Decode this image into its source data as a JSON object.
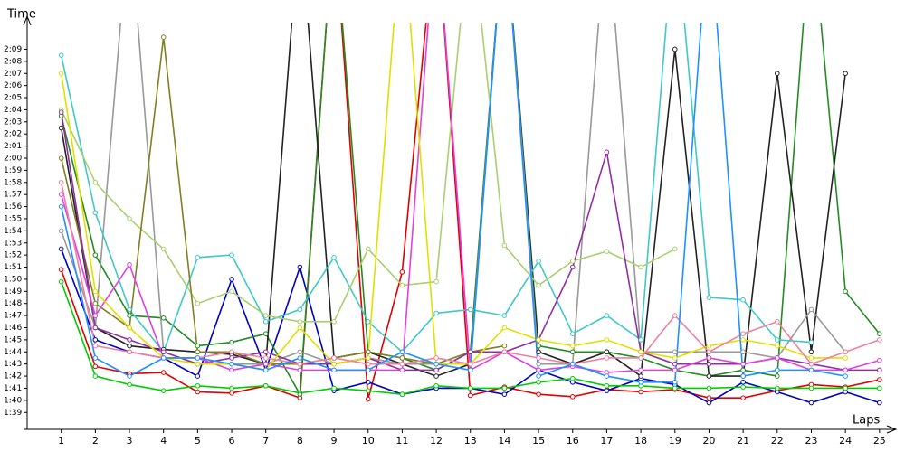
{
  "chart_data": {
    "type": "line",
    "y_label": "Time",
    "x_label": "Laps",
    "xlim": [
      0,
      25.35
    ],
    "ylim": [
      97.6,
      131.2
    ],
    "xticks": [
      1,
      2,
      3,
      4,
      5,
      6,
      7,
      8,
      9,
      10,
      11,
      12,
      13,
      14,
      15,
      16,
      17,
      18,
      19,
      20,
      21,
      22,
      23,
      24,
      25
    ],
    "yticks": [
      {
        "value": 99,
        "label": "1:39"
      },
      {
        "value": 100,
        "label": "1:40"
      },
      {
        "value": 101,
        "label": "1:41"
      },
      {
        "value": 102,
        "label": "1:42"
      },
      {
        "value": 103,
        "label": "1:43"
      },
      {
        "value": 104,
        "label": "1:44"
      },
      {
        "value": 105,
        "label": "1:45"
      },
      {
        "value": 106,
        "label": "1:46"
      },
      {
        "value": 107,
        "label": "1:47"
      },
      {
        "value": 108,
        "label": "1:48"
      },
      {
        "value": 109,
        "label": "1:49"
      },
      {
        "value": 110,
        "label": "1:50"
      },
      {
        "value": 111,
        "label": "1:51"
      },
      {
        "value": 112,
        "label": "1:52"
      },
      {
        "value": 113,
        "label": "1:53"
      },
      {
        "value": 114,
        "label": "1:54"
      },
      {
        "value": 115,
        "label": "1:55"
      },
      {
        "value": 116,
        "label": "1:56"
      },
      {
        "value": 117,
        "label": "1:57"
      },
      {
        "value": 118,
        "label": "1:58"
      },
      {
        "value": 119,
        "label": "1:59"
      },
      {
        "value": 120,
        "label": "2:00"
      },
      {
        "value": 121,
        "label": "2:01"
      },
      {
        "value": 122,
        "label": "2:02"
      },
      {
        "value": 123,
        "label": "2:03"
      },
      {
        "value": 124,
        "label": "2:04"
      },
      {
        "value": 125,
        "label": "2:05"
      },
      {
        "value": 126,
        "label": "2:06"
      },
      {
        "value": 127,
        "label": "2:07"
      },
      {
        "value": 128,
        "label": "2:08"
      },
      {
        "value": 129,
        "label": "2:09"
      }
    ],
    "series": [
      {
        "color": "#e00000",
        "values": [
          110.8,
          102.8,
          102.2,
          102.3,
          100.7,
          100.6,
          101.2,
          100.2,
          140,
          100.1,
          110.6,
          140,
          100.4,
          101.1,
          100.5,
          100.3,
          100.9,
          100.7,
          100.9,
          100.2,
          100.2,
          100.8,
          101.3,
          101.1,
          101.7
        ]
      },
      {
        "color": "#0000c0",
        "values": [
          112.5,
          105,
          104,
          103.5,
          102,
          110,
          102.5,
          111,
          100.8,
          101.5,
          100.5,
          101,
          101,
          100.5,
          102.5,
          101.5,
          100.8,
          101.8,
          101.3,
          99.8,
          101.5,
          100.7,
          99.8,
          100.7,
          99.8
        ]
      },
      {
        "color": "#00cc00",
        "values": [
          109.8,
          102,
          101.3,
          100.8,
          101.2,
          101,
          101.2,
          100.6,
          101,
          100.8,
          100.5,
          101.2,
          101,
          101,
          101.5,
          101.8,
          101.2,
          101.2,
          101,
          101,
          101.1,
          101,
          101,
          101,
          101
        ]
      },
      {
        "color": "#228b22",
        "values": [
          123.5,
          112,
          107,
          106.8,
          104.5,
          104.8,
          105.5,
          100.5,
          140,
          104,
          103.5,
          102.5,
          104,
          140,
          104.5,
          104,
          104,
          103.5,
          102.5,
          102,
          102.5,
          102,
          140,
          109,
          105.5
        ]
      },
      {
        "color": "#222222",
        "values": [
          122.5,
          106,
          104.5,
          104.2,
          104,
          103.8,
          103,
          140,
          103.5,
          104,
          103,
          102,
          103,
          140,
          104,
          103,
          104,
          102,
          129,
          102,
          102,
          127,
          104,
          127,
          null
        ]
      },
      {
        "color": "#999999",
        "values": [
          114,
          106,
          140,
          104,
          103,
          103,
          103,
          104,
          103,
          103.5,
          103,
          103,
          103,
          140,
          103,
          103,
          140,
          104,
          104,
          104,
          104,
          103.5,
          107.5,
          104,
          null
        ]
      },
      {
        "color": "#40c8c8",
        "values": [
          128.5,
          115.5,
          107.5,
          104,
          111.8,
          112,
          106.5,
          107.5,
          111.8,
          106.5,
          104,
          107.2,
          107.5,
          107,
          111.5,
          105.5,
          107,
          105,
          140,
          108.5,
          108.3,
          105,
          104.8,
          null,
          null
        ]
      },
      {
        "color": "#a8d070",
        "values": [
          124,
          118,
          115,
          112.5,
          108,
          109,
          107,
          106.5,
          106.5,
          112.5,
          109.5,
          109.8,
          140,
          112.8,
          109.5,
          111.5,
          112.3,
          111,
          112.5,
          null,
          null,
          null,
          null,
          null,
          null
        ]
      },
      {
        "color": "#808020",
        "values": [
          120,
          108,
          106,
          130,
          104,
          104,
          103,
          103,
          103.5,
          104,
          103.5,
          103,
          104,
          104.5,
          null,
          null,
          null,
          null,
          null,
          null,
          null,
          null,
          null,
          null,
          null
        ]
      },
      {
        "color": "#9030a0",
        "values": [
          123.8,
          106,
          105,
          104,
          103,
          103.5,
          104,
          103,
          103,
          103.5,
          102.5,
          102.5,
          104,
          104,
          105,
          111,
          120.5,
          104,
          103,
          103,
          103,
          103.5,
          103,
          102.5,
          102.5
        ]
      },
      {
        "color": "#e040e0",
        "values": [
          117,
          107,
          111.2,
          103.5,
          103.5,
          102.5,
          103,
          102.5,
          102.5,
          102.5,
          102.5,
          140,
          102.5,
          104,
          102.5,
          102.8,
          102.3,
          102.5,
          102.5,
          103.5,
          103,
          103.5,
          102.5,
          102.5,
          103.3
        ]
      },
      {
        "color": "#e0e000",
        "values": [
          127,
          109,
          106,
          103.5,
          103,
          103,
          102.5,
          106,
          103,
          103.5,
          140,
          103,
          103,
          106,
          105,
          104.5,
          105,
          104,
          103.5,
          104.5,
          105,
          104.5,
          103.5,
          103.5,
          null
        ]
      },
      {
        "color": "#f080a0",
        "values": [
          118,
          104.5,
          104,
          103.5,
          103.5,
          104,
          103.5,
          103,
          103.5,
          103,
          103,
          103.5,
          103,
          104,
          103.5,
          103,
          103.5,
          103.5,
          107,
          104,
          105.5,
          106.5,
          103,
          104,
          105
        ]
      },
      {
        "color": "#1e90ff",
        "values": [
          116,
          103.5,
          102,
          103.5,
          103.5,
          103,
          102.5,
          103.5,
          102.5,
          102.5,
          104,
          103,
          102.5,
          140,
          102,
          103,
          102,
          101.5,
          101.5,
          140,
          102,
          102.5,
          102.5,
          102,
          null
        ]
      }
    ]
  }
}
